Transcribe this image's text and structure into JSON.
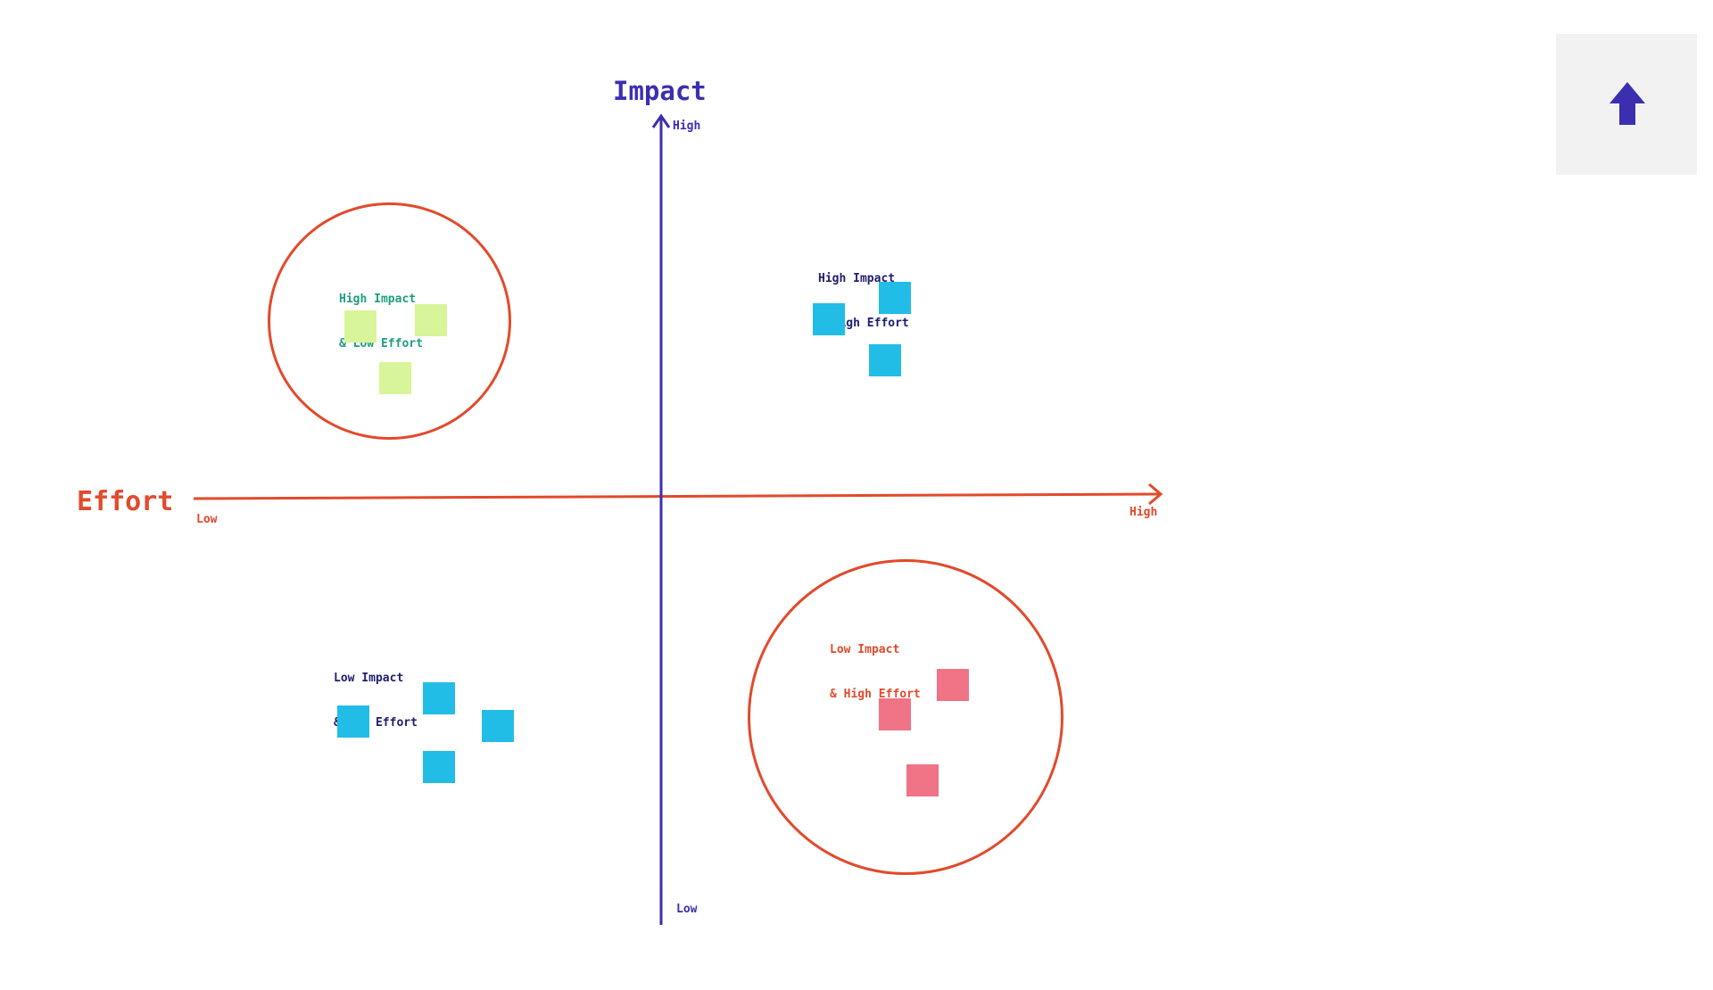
{
  "colors": {
    "impact_axis": "#3b2fb0",
    "effort_axis": "#e24a2b",
    "note_blue": "#22bde6",
    "note_green": "#d9f59a",
    "note_pink": "#f07386",
    "label_green": "#1f9e80",
    "label_navy": "#1f1f6e",
    "label_red": "#e24a2b",
    "button_bg": "#f2f2f2"
  },
  "impact_axis": {
    "title": "Impact",
    "high": "High",
    "low": "Low"
  },
  "effort_axis": {
    "title": "Effort",
    "low": "Low",
    "high": "High"
  },
  "quadrants": {
    "high_impact_low_effort": {
      "line1": "High Impact",
      "line2": "& Low Effort",
      "note_color": "green",
      "notes": 3
    },
    "high_impact_high_effort": {
      "line1": "High Impact",
      "line2": "& High Effort",
      "note_color": "blue",
      "notes": 3
    },
    "low_impact_low_effort": {
      "line1": "Low Impact",
      "line2": "& Low Effort",
      "note_color": "blue",
      "notes": 4
    },
    "low_impact_high_effort": {
      "line1": "Low Impact",
      "line2": "& High Effort",
      "note_color": "pink",
      "notes": 3
    }
  },
  "toolbar": {
    "upload_icon": "arrow-up-icon"
  }
}
